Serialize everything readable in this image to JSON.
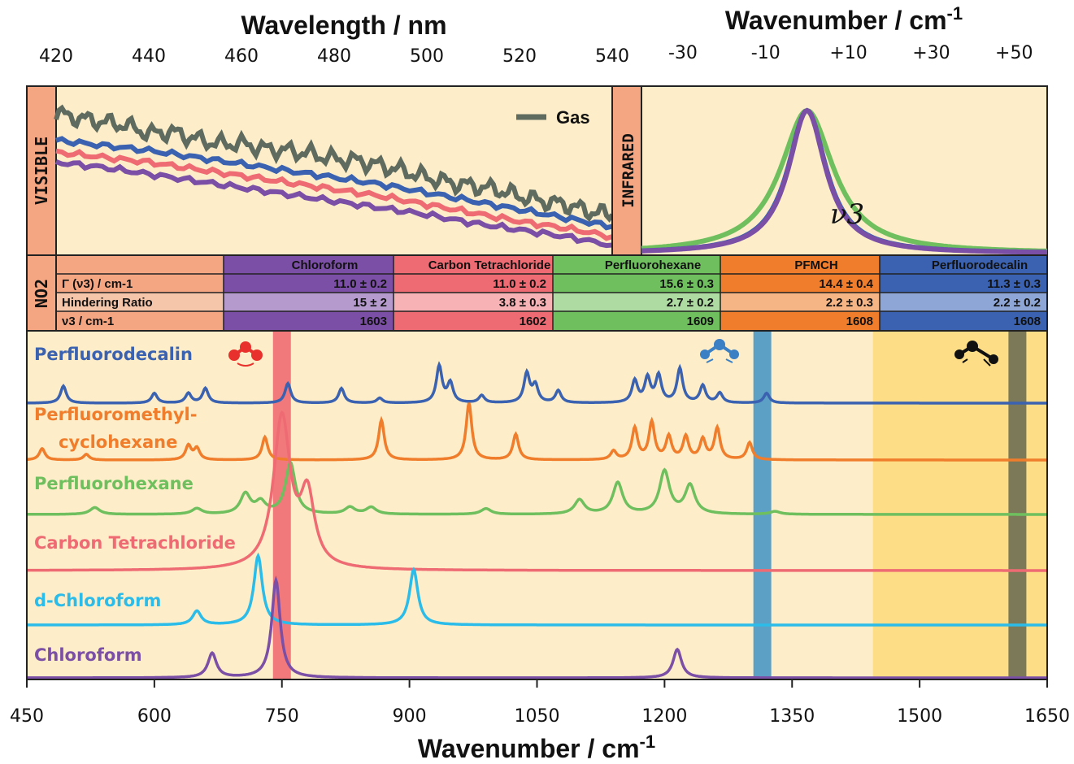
{
  "colors": {
    "panel_bg": "#fdeec9",
    "salmon": "#f4a582",
    "chloroform": "#7b4fa6",
    "ccl4": "#ef6b73",
    "perfluorohexane": "#6fbf5f",
    "pfmch": "#ef7d2b",
    "perfluorodecalin": "#3b62b0",
    "dchloroform": "#2cbce9",
    "gas": "#5f6b5f"
  },
  "chart_data": [
    {
      "type": "line",
      "name": "visible",
      "title": "Wavelength / nm",
      "band_label": "VISIBLE",
      "xlabel": "Wavelength / nm",
      "xticks": [
        420,
        440,
        460,
        480,
        500,
        520,
        540
      ],
      "xlim": [
        420,
        540
      ],
      "legend": "top-right",
      "series": [
        {
          "name": "Gas",
          "color": "#5f6b5f",
          "x": [
            420,
            425,
            430,
            435,
            440,
            445,
            450,
            455,
            460,
            465,
            470,
            475,
            480,
            485,
            490,
            495,
            500,
            505,
            510,
            515,
            520,
            525,
            530,
            535,
            540
          ],
          "y": [
            0.84,
            0.81,
            0.79,
            0.77,
            0.72,
            0.73,
            0.69,
            0.66,
            0.66,
            0.63,
            0.62,
            0.6,
            0.57,
            0.56,
            0.53,
            0.5,
            0.46,
            0.43,
            0.41,
            0.39,
            0.35,
            0.32,
            0.3,
            0.26,
            0.24
          ]
        },
        {
          "series_color": "#3b62b0",
          "color": "#3b62b0",
          "x": [
            420,
            430,
            440,
            450,
            460,
            470,
            480,
            490,
            500,
            510,
            520,
            530,
            540
          ],
          "y": [
            0.68,
            0.65,
            0.62,
            0.58,
            0.54,
            0.5,
            0.46,
            0.42,
            0.37,
            0.32,
            0.27,
            0.22,
            0.17
          ]
        },
        {
          "color": "#ef6b73",
          "x": [
            420,
            430,
            440,
            450,
            460,
            470,
            480,
            490,
            500,
            510,
            520,
            530,
            540
          ],
          "y": [
            0.61,
            0.58,
            0.55,
            0.51,
            0.47,
            0.43,
            0.39,
            0.35,
            0.3,
            0.25,
            0.2,
            0.16,
            0.11
          ]
        },
        {
          "color": "#7b4fa6",
          "x": [
            420,
            430,
            440,
            450,
            460,
            470,
            480,
            490,
            500,
            510,
            520,
            530,
            540
          ],
          "y": [
            0.55,
            0.52,
            0.48,
            0.44,
            0.4,
            0.36,
            0.32,
            0.28,
            0.24,
            0.19,
            0.15,
            0.11,
            0.06
          ]
        }
      ]
    },
    {
      "type": "line",
      "name": "infrared",
      "title": "Wavenumber / cm-1",
      "band_label": "INFRARED",
      "annotation": "ν3",
      "xticks": [
        "-30",
        "-10",
        "+10",
        "+30",
        "+50"
      ],
      "xlim": [
        -40,
        58
      ],
      "series": [
        {
          "color": "#6fbf5f",
          "gamma": 15.6
        },
        {
          "color": "#3b62b0",
          "gamma": 11.3
        },
        {
          "color": "#7b4fa6",
          "gamma": 11.0
        }
      ]
    },
    {
      "type": "line",
      "name": "main",
      "xlabel": "Wavenumber / cm-1",
      "xticks": [
        450,
        600,
        750,
        900,
        1050,
        1200,
        1350,
        1500,
        1650
      ],
      "xlim": [
        450,
        1650
      ],
      "series": [
        {
          "name": "Perfluorodecalin",
          "color": "#3b62b0",
          "peaks": [
            [
              493,
              0.35
            ],
            [
              600,
              0.2
            ],
            [
              640,
              0.2
            ],
            [
              660,
              0.3
            ],
            [
              757,
              0.4
            ],
            [
              820,
              0.3
            ],
            [
              865,
              0.1
            ],
            [
              935,
              0.75
            ],
            [
              948,
              0.4
            ],
            [
              985,
              0.15
            ],
            [
              1038,
              0.6
            ],
            [
              1048,
              0.35
            ],
            [
              1075,
              0.25
            ],
            [
              1165,
              0.45
            ],
            [
              1180,
              0.5
            ],
            [
              1193,
              0.55
            ],
            [
              1218,
              0.7
            ],
            [
              1245,
              0.35
            ],
            [
              1265,
              0.2
            ],
            [
              1320,
              0.2
            ]
          ]
        },
        {
          "name": "Perfluoromethyl-",
          "name_line2": "cyclohexane",
          "color": "#ef7d2b",
          "peaks": [
            [
              468,
              0.2
            ],
            [
              520,
              0.1
            ],
            [
              640,
              0.25
            ],
            [
              650,
              0.2
            ],
            [
              730,
              0.4
            ],
            [
              867,
              0.7
            ],
            [
              970,
              1.0
            ],
            [
              1025,
              0.45
            ],
            [
              1140,
              0.15
            ],
            [
              1165,
              0.55
            ],
            [
              1185,
              0.65
            ],
            [
              1205,
              0.4
            ],
            [
              1225,
              0.4
            ],
            [
              1245,
              0.35
            ],
            [
              1262,
              0.55
            ],
            [
              1300,
              0.3
            ]
          ]
        },
        {
          "name": "Perfluorohexane",
          "color": "#6fbf5f",
          "peaks": [
            [
              530,
              0.12
            ],
            [
              650,
              0.1
            ],
            [
              707,
              0.35
            ],
            [
              725,
              0.2
            ],
            [
              760,
              0.9
            ],
            [
              830,
              0.12
            ],
            [
              855,
              0.12
            ],
            [
              990,
              0.1
            ],
            [
              1100,
              0.25
            ],
            [
              1145,
              0.55
            ],
            [
              1200,
              0.75
            ],
            [
              1230,
              0.5
            ],
            [
              1330,
              0.05
            ]
          ]
        },
        {
          "name": "Carbon Tetrachloride",
          "color": "#ef6b73",
          "peaks": [
            [
              750,
              1.2
            ],
            [
              780,
              0.55
            ]
          ]
        },
        {
          "name": "d-Chloroform",
          "color": "#2cbce9",
          "peaks": [
            [
              650,
              0.2
            ],
            [
              722,
              1.0
            ],
            [
              905,
              0.8
            ]
          ]
        },
        {
          "name": "Chloroform",
          "color": "#7b4fa6",
          "peaks": [
            [
              668,
              0.3
            ],
            [
              743,
              1.2
            ],
            [
              1215,
              0.35
            ]
          ]
        }
      ],
      "bands": [
        {
          "center": 750,
          "width": 22,
          "color": "#ef6b73"
        },
        {
          "center": 1315,
          "width": 22,
          "color": "#4b97c5"
        },
        {
          "start": 1445,
          "end": 1650,
          "color": "#fddb7a"
        },
        {
          "center": 1615,
          "width": 22,
          "color": "#6e6e54"
        }
      ]
    }
  ],
  "table": {
    "band_label": "NO2",
    "row_labels": [
      "Γ (ν3)  / cm-1",
      "Hindering Ratio",
      "ν3 / cm-1"
    ],
    "columns": [
      {
        "header": "Chloroform",
        "gamma": "11.0 ± 0.2",
        "ratio": "15 ± 2",
        "nu3": "1603",
        "color": "#7b4fa6",
        "light": "#b49acd"
      },
      {
        "header": "Carbon Tetrachloride",
        "gamma": "11.0 ± 0.2",
        "ratio": "3.8 ± 0.3",
        "nu3": "1602",
        "color": "#ef6b73",
        "light": "#f6b2b4"
      },
      {
        "header": "Perfluorohexane",
        "gamma": "15.6 ± 0.3",
        "ratio": "2.7 ± 0.2",
        "nu3": "1609",
        "color": "#6fbf5f",
        "light": "#aedba2"
      },
      {
        "header": "PFMCH",
        "gamma": "14.4 ± 0.4",
        "ratio": "2.2 ± 0.3",
        "nu3": "1608",
        "color": "#ef7d2b",
        "light": "#f6b585"
      },
      {
        "header": "Perfluorodecalin",
        "gamma": "11.3 ± 0.3",
        "ratio": "2.2 ± 0.2",
        "nu3": "1608",
        "color": "#3b62b0",
        "light": "#8ea6d6"
      }
    ]
  }
}
